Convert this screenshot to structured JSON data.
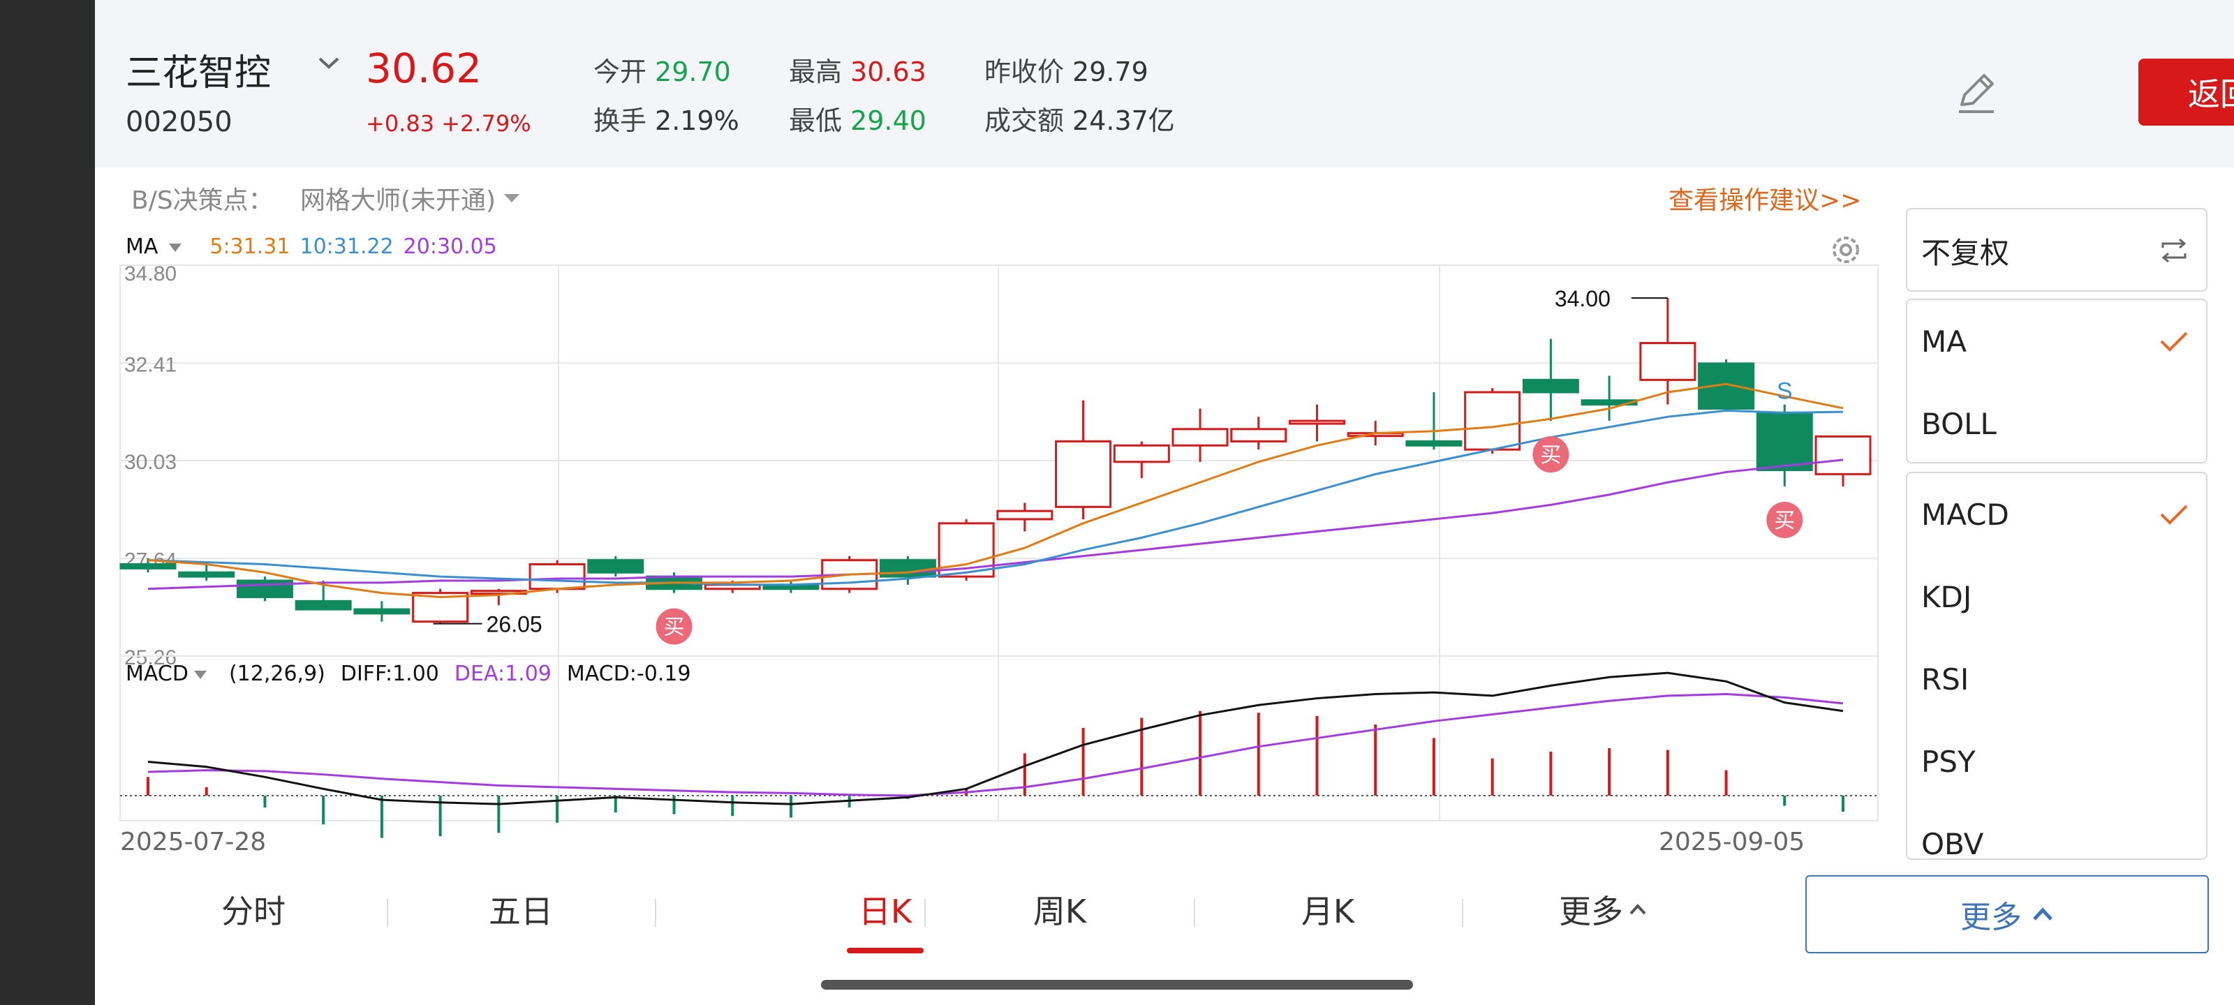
{
  "stock": {
    "name": "三花智控",
    "code": "002050",
    "price": "30.62",
    "change": "+0.83 +2.79%"
  },
  "quote": {
    "open_label": "今开",
    "open": "29.70",
    "high_label": "最高",
    "high": "30.63",
    "prev_close_label": "昨收价",
    "prev_close": "29.79",
    "turnover_label": "换手",
    "turnover": "2.19%",
    "low_label": "最低",
    "low": "29.40",
    "amount_label": "成交额",
    "amount": "24.37亿"
  },
  "header": {
    "back_label": "返回"
  },
  "bs": {
    "label": "B/S决策点：",
    "grid_master": "网格大师(未开通)",
    "advice_link": "查看操作建议>>"
  },
  "ma_legend": {
    "title": "MA",
    "ma5": "5:31.31",
    "ma10": "10:31.22",
    "ma20": "20:30.05"
  },
  "macd_legend": {
    "title": "MACD",
    "params": "(12,26,9)",
    "diff": "DIFF:1.00",
    "dea": "DEA:1.09",
    "macd": "MACD:-0.19"
  },
  "dates": {
    "start": "2025-07-28",
    "end": "2025-09-05"
  },
  "tabs": [
    "分时",
    "五日",
    "日K",
    "周K",
    "月K",
    "更多"
  ],
  "active_tab": "日K",
  "more_button": "更多",
  "side_panel": {
    "adjust": "不复权",
    "main_indicators": [
      {
        "label": "MA",
        "checked": true
      },
      {
        "label": "BOLL",
        "checked": false
      }
    ],
    "sub_indicators": [
      {
        "label": "MACD",
        "checked": true
      },
      {
        "label": "KDJ",
        "checked": false
      },
      {
        "label": "RSI",
        "checked": false
      },
      {
        "label": "PSY",
        "checked": false
      },
      {
        "label": "OBV",
        "checked": false
      }
    ]
  },
  "colors": {
    "up": "#d7191a",
    "down": "#0f8a5f",
    "ma5": "#e07c12",
    "ma10": "#3a8fd0",
    "ma20": "#a33be0",
    "dif": "#111111",
    "dea": "#a33be0",
    "accent_blue": "#3d73b8"
  },
  "chart_data": {
    "type": "candlestick",
    "y_ticks": [
      "34.80",
      "32.41",
      "30.03",
      "27.64",
      "25.26"
    ],
    "ylim": [
      25.26,
      34.8
    ],
    "candles": [
      {
        "o": 27.5,
        "h": 27.65,
        "l": 27.3,
        "c": 27.4
      },
      {
        "o": 27.3,
        "h": 27.5,
        "l": 27.1,
        "c": 27.2
      },
      {
        "o": 27.1,
        "h": 27.2,
        "l": 26.6,
        "c": 26.7
      },
      {
        "o": 26.6,
        "h": 27.1,
        "l": 26.4,
        "c": 26.4
      },
      {
        "o": 26.4,
        "h": 26.6,
        "l": 26.1,
        "c": 26.3
      },
      {
        "o": 26.1,
        "h": 26.9,
        "l": 26.05,
        "c": 26.8
      },
      {
        "o": 26.8,
        "h": 26.9,
        "l": 26.5,
        "c": 26.85
      },
      {
        "o": 26.9,
        "h": 27.6,
        "l": 26.8,
        "c": 27.5
      },
      {
        "o": 27.6,
        "h": 27.7,
        "l": 27.2,
        "c": 27.3
      },
      {
        "o": 27.2,
        "h": 27.3,
        "l": 26.8,
        "c": 26.9
      },
      {
        "o": 26.9,
        "h": 27.1,
        "l": 26.8,
        "c": 27.0
      },
      {
        "o": 27.0,
        "h": 27.1,
        "l": 26.8,
        "c": 26.9
      },
      {
        "o": 26.9,
        "h": 27.7,
        "l": 26.8,
        "c": 27.6
      },
      {
        "o": 27.6,
        "h": 27.7,
        "l": 27.0,
        "c": 27.2
      },
      {
        "o": 27.2,
        "h": 28.6,
        "l": 27.1,
        "c": 28.5
      },
      {
        "o": 28.6,
        "h": 29.0,
        "l": 28.3,
        "c": 28.8
      },
      {
        "o": 28.9,
        "h": 31.5,
        "l": 28.6,
        "c": 30.5
      },
      {
        "o": 30.0,
        "h": 30.5,
        "l": 29.6,
        "c": 30.4
      },
      {
        "o": 30.4,
        "h": 31.3,
        "l": 30.0,
        "c": 30.8
      },
      {
        "o": 30.5,
        "h": 31.1,
        "l": 30.3,
        "c": 30.8
      },
      {
        "o": 31.0,
        "h": 31.4,
        "l": 30.5,
        "c": 31.0
      },
      {
        "o": 30.7,
        "h": 31.0,
        "l": 30.4,
        "c": 30.7
      },
      {
        "o": 30.5,
        "h": 31.7,
        "l": 30.3,
        "c": 30.4
      },
      {
        "o": 30.3,
        "h": 31.8,
        "l": 30.2,
        "c": 31.7
      },
      {
        "o": 32.0,
        "h": 33.0,
        "l": 31.0,
        "c": 31.7
      },
      {
        "o": 31.5,
        "h": 32.1,
        "l": 31.0,
        "c": 31.4
      },
      {
        "o": 32.0,
        "h": 34.0,
        "l": 31.4,
        "c": 32.9
      },
      {
        "o": 32.4,
        "h": 32.5,
        "l": 31.3,
        "c": 31.3
      },
      {
        "o": 31.2,
        "h": 31.4,
        "l": 29.4,
        "c": 29.8
      },
      {
        "o": 29.7,
        "h": 30.63,
        "l": 29.4,
        "c": 30.62
      }
    ],
    "ma5": [
      27.6,
      27.5,
      27.3,
      27.0,
      26.8,
      26.7,
      26.75,
      26.9,
      27.0,
      27.05,
      27.05,
      27.1,
      27.25,
      27.3,
      27.5,
      27.9,
      28.5,
      29.0,
      29.5,
      30.0,
      30.4,
      30.7,
      30.75,
      30.85,
      31.05,
      31.3,
      31.7,
      31.9,
      31.6,
      31.31
    ],
    "ma10": [
      27.6,
      27.55,
      27.5,
      27.4,
      27.3,
      27.2,
      27.15,
      27.1,
      27.05,
      27.05,
      27.0,
      27.0,
      27.05,
      27.15,
      27.3,
      27.5,
      27.85,
      28.15,
      28.5,
      28.9,
      29.3,
      29.7,
      30.0,
      30.3,
      30.6,
      30.85,
      31.1,
      31.25,
      31.2,
      31.22
    ],
    "ma20": [
      26.9,
      26.95,
      27.0,
      27.05,
      27.05,
      27.1,
      27.1,
      27.15,
      27.15,
      27.2,
      27.2,
      27.2,
      27.25,
      27.3,
      27.4,
      27.55,
      27.7,
      27.85,
      28.0,
      28.15,
      28.3,
      28.45,
      28.6,
      28.75,
      28.95,
      29.2,
      29.5,
      29.75,
      29.9,
      30.05
    ],
    "dif": [
      0.4,
      0.34,
      0.22,
      0.08,
      -0.05,
      -0.08,
      -0.1,
      -0.06,
      -0.02,
      -0.05,
      -0.08,
      -0.1,
      -0.06,
      -0.02,
      0.08,
      0.35,
      0.6,
      0.78,
      0.95,
      1.07,
      1.15,
      1.2,
      1.22,
      1.18,
      1.3,
      1.4,
      1.45,
      1.35,
      1.1,
      1.0
    ],
    "dea": [
      0.28,
      0.3,
      0.29,
      0.25,
      0.2,
      0.16,
      0.12,
      0.1,
      0.08,
      0.06,
      0.04,
      0.03,
      0.01,
      0.0,
      0.04,
      0.1,
      0.2,
      0.32,
      0.45,
      0.58,
      0.68,
      0.78,
      0.88,
      0.96,
      1.04,
      1.12,
      1.18,
      1.2,
      1.16,
      1.09
    ],
    "macd": [
      0.22,
      0.1,
      -0.14,
      -0.34,
      -0.5,
      -0.48,
      -0.44,
      -0.32,
      -0.2,
      -0.22,
      -0.24,
      -0.26,
      -0.14,
      -0.04,
      0.08,
      0.5,
      0.8,
      0.92,
      1.0,
      0.98,
      0.94,
      0.84,
      0.68,
      0.44,
      0.52,
      0.56,
      0.54,
      0.3,
      -0.12,
      -0.19
    ],
    "macd_range": [
      -0.6,
      1.6
    ],
    "high_mark": {
      "index": 26,
      "label": "34.00"
    },
    "low_mark": {
      "index": 5,
      "label": "26.05"
    },
    "signals": [
      {
        "index": 9,
        "label": "买"
      },
      {
        "index": 24,
        "label": "买"
      },
      {
        "index": 28,
        "label": "买"
      },
      {
        "index": 28,
        "label": "S"
      }
    ]
  }
}
